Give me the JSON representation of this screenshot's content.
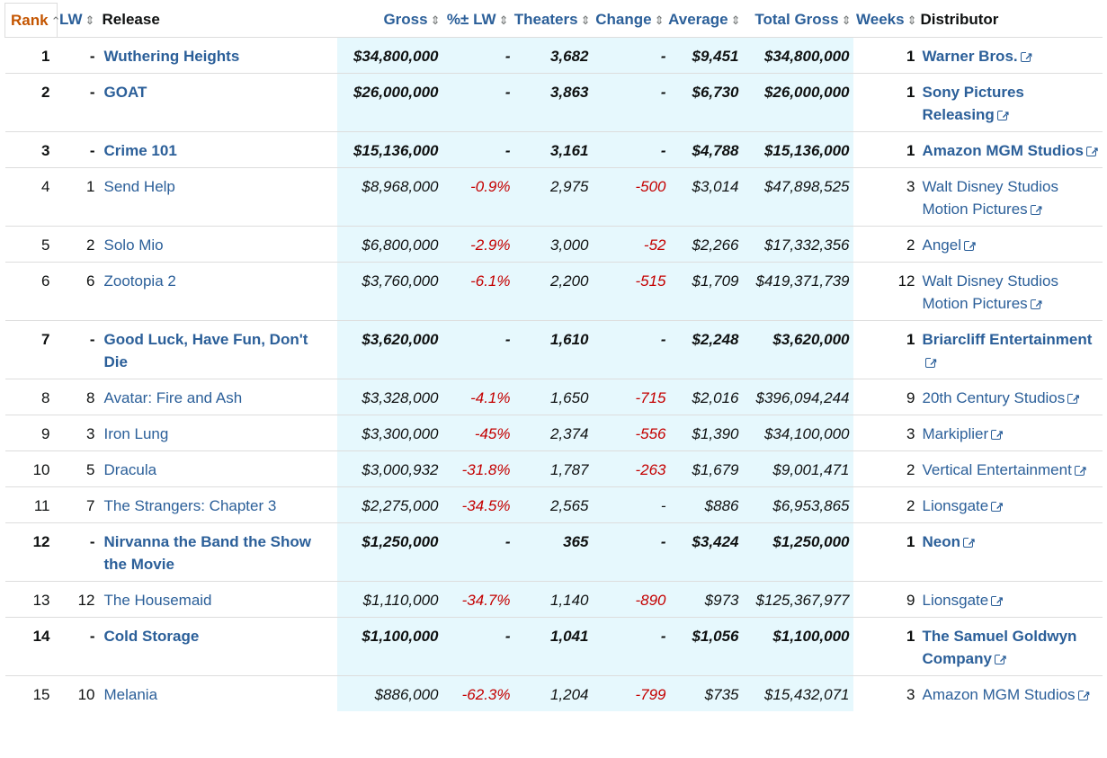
{
  "headers": {
    "rank": "Rank",
    "lw": "LW",
    "release": "Release",
    "gross": "Gross",
    "pct_lw": "%± LW",
    "theaters": "Theaters",
    "change": "Change",
    "average": "Average",
    "total_gross": "Total Gross",
    "weeks": "Weeks",
    "distributor": "Distributor"
  },
  "colors": {
    "link": "#2b5f99",
    "active_sort": "#c45500",
    "negative": "#c40000",
    "highlight": "#e6f8fd"
  },
  "rows": [
    {
      "rank": "1",
      "lw": "-",
      "release": "Wuthering Heights",
      "gross": "$34,800,000",
      "pct_lw": "-",
      "theaters": "3,682",
      "change": "-",
      "average": "$9,451",
      "total_gross": "$34,800,000",
      "weeks": "1",
      "distributor": "Warner Bros.",
      "new": true
    },
    {
      "rank": "2",
      "lw": "-",
      "release": "GOAT",
      "gross": "$26,000,000",
      "pct_lw": "-",
      "theaters": "3,863",
      "change": "-",
      "average": "$6,730",
      "total_gross": "$26,000,000",
      "weeks": "1",
      "distributor": "Sony Pictures Releasing",
      "new": true
    },
    {
      "rank": "3",
      "lw": "-",
      "release": "Crime 101",
      "gross": "$15,136,000",
      "pct_lw": "-",
      "theaters": "3,161",
      "change": "-",
      "average": "$4,788",
      "total_gross": "$15,136,000",
      "weeks": "1",
      "distributor": "Amazon MGM Studios",
      "new": true
    },
    {
      "rank": "4",
      "lw": "1",
      "release": "Send Help",
      "gross": "$8,968,000",
      "pct_lw": "-0.9%",
      "theaters": "2,975",
      "change": "-500",
      "average": "$3,014",
      "total_gross": "$47,898,525",
      "weeks": "3",
      "distributor": "Walt Disney Studios Motion Pictures",
      "new": false
    },
    {
      "rank": "5",
      "lw": "2",
      "release": "Solo Mio",
      "gross": "$6,800,000",
      "pct_lw": "-2.9%",
      "theaters": "3,000",
      "change": "-52",
      "average": "$2,266",
      "total_gross": "$17,332,356",
      "weeks": "2",
      "distributor": "Angel",
      "new": false
    },
    {
      "rank": "6",
      "lw": "6",
      "release": "Zootopia 2",
      "gross": "$3,760,000",
      "pct_lw": "-6.1%",
      "theaters": "2,200",
      "change": "-515",
      "average": "$1,709",
      "total_gross": "$419,371,739",
      "weeks": "12",
      "distributor": "Walt Disney Studios Motion Pictures",
      "new": false
    },
    {
      "rank": "7",
      "lw": "-",
      "release": "Good Luck, Have Fun, Don't Die",
      "gross": "$3,620,000",
      "pct_lw": "-",
      "theaters": "1,610",
      "change": "-",
      "average": "$2,248",
      "total_gross": "$3,620,000",
      "weeks": "1",
      "distributor": "Briarcliff Entertainment",
      "new": true
    },
    {
      "rank": "8",
      "lw": "8",
      "release": "Avatar: Fire and Ash",
      "gross": "$3,328,000",
      "pct_lw": "-4.1%",
      "theaters": "1,650",
      "change": "-715",
      "average": "$2,016",
      "total_gross": "$396,094,244",
      "weeks": "9",
      "distributor": "20th Century Studios",
      "new": false
    },
    {
      "rank": "9",
      "lw": "3",
      "release": "Iron Lung",
      "gross": "$3,300,000",
      "pct_lw": "-45%",
      "theaters": "2,374",
      "change": "-556",
      "average": "$1,390",
      "total_gross": "$34,100,000",
      "weeks": "3",
      "distributor": "Markiplier",
      "new": false
    },
    {
      "rank": "10",
      "lw": "5",
      "release": "Dracula",
      "gross": "$3,000,932",
      "pct_lw": "-31.8%",
      "theaters": "1,787",
      "change": "-263",
      "average": "$1,679",
      "total_gross": "$9,001,471",
      "weeks": "2",
      "distributor": "Vertical Entertainment",
      "new": false
    },
    {
      "rank": "11",
      "lw": "7",
      "release": "The Strangers: Chapter 3",
      "gross": "$2,275,000",
      "pct_lw": "-34.5%",
      "theaters": "2,565",
      "change": "-",
      "average": "$886",
      "total_gross": "$6,953,865",
      "weeks": "2",
      "distributor": "Lionsgate",
      "new": false
    },
    {
      "rank": "12",
      "lw": "-",
      "release": "Nirvanna the Band the Show the Movie",
      "gross": "$1,250,000",
      "pct_lw": "-",
      "theaters": "365",
      "change": "-",
      "average": "$3,424",
      "total_gross": "$1,250,000",
      "weeks": "1",
      "distributor": "Neon",
      "new": true
    },
    {
      "rank": "13",
      "lw": "12",
      "release": "The Housemaid",
      "gross": "$1,110,000",
      "pct_lw": "-34.7%",
      "theaters": "1,140",
      "change": "-890",
      "average": "$973",
      "total_gross": "$125,367,977",
      "weeks": "9",
      "distributor": "Lionsgate",
      "new": false
    },
    {
      "rank": "14",
      "lw": "-",
      "release": "Cold Storage",
      "gross": "$1,100,000",
      "pct_lw": "-",
      "theaters": "1,041",
      "change": "-",
      "average": "$1,056",
      "total_gross": "$1,100,000",
      "weeks": "1",
      "distributor": "The Samuel Goldwyn Company",
      "new": true
    },
    {
      "rank": "15",
      "lw": "10",
      "release": "Melania",
      "gross": "$886,000",
      "pct_lw": "-62.3%",
      "theaters": "1,204",
      "change": "-799",
      "average": "$735",
      "total_gross": "$15,432,071",
      "weeks": "3",
      "distributor": "Amazon MGM Studios",
      "new": false
    }
  ]
}
